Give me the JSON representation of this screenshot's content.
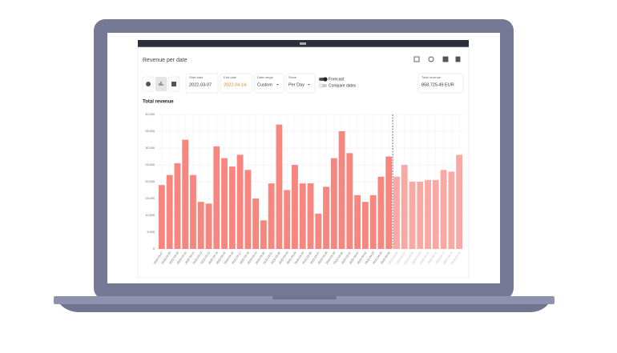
{
  "header": {
    "title": "Revenue per date"
  },
  "controls": {
    "start_date": {
      "label": "Start date",
      "value": "2022-03-07"
    },
    "end_date": {
      "label": "End date",
      "value": "2022-04-14"
    },
    "date_range": {
      "label": "Date range",
      "value": "Custom"
    },
    "show": {
      "label": "Show",
      "value": "Per Day"
    },
    "forecast": "Forecast",
    "compare": "Compare dates",
    "total": {
      "label": "Total revenue",
      "value": "858,725.49 EUR"
    }
  },
  "chart_data": {
    "type": "bar",
    "title": "Total revenue",
    "categories": [
      "2022-03-07",
      "2022-03-08",
      "2022-03-09",
      "2022-03-10",
      "2022-03-11",
      "2022-03-12",
      "2022-03-13",
      "2022-03-14",
      "2022-03-15",
      "2022-03-16",
      "2022-03-17",
      "2022-03-18",
      "2022-03-19",
      "2022-03-20",
      "2022-03-21",
      "2022-03-22",
      "2022-03-23",
      "2022-03-24",
      "2022-03-25",
      "2022-03-26",
      "2022-03-27",
      "2022-03-28",
      "2022-03-29",
      "2022-03-30",
      "2022-03-31",
      "2022-04-01",
      "2022-04-02",
      "2022-04-03",
      "2022-04-04",
      "2022-04-05",
      "2022-04-06",
      "2022-04-07",
      "2022-04-08",
      "2022-04-09",
      "2022-04-10",
      "2022-04-11",
      "2022-04-12",
      "2022-04-13",
      "2022-04-14"
    ],
    "values": [
      19000,
      22000,
      25500,
      32500,
      22000,
      14000,
      13500,
      30500,
      27000,
      24500,
      28000,
      23500,
      15000,
      8500,
      19500,
      37000,
      17500,
      25000,
      19500,
      19500,
      10500,
      18500,
      27000,
      35000,
      28500,
      16000,
      14000,
      16000,
      21500,
      27500,
      21500,
      25000,
      20000,
      20000,
      20500,
      20500,
      23500,
      23000,
      28000
    ],
    "colors": [
      "#f7867e",
      "#f7867e",
      "#f7867e",
      "#f7867e",
      "#f7867e",
      "#f7867e",
      "#f7867e",
      "#f7867e",
      "#f7867e",
      "#f7867e",
      "#f7867e",
      "#f7867e",
      "#f7867e",
      "#f7867e",
      "#f7867e",
      "#f7867e",
      "#f7867e",
      "#f7867e",
      "#f7867e",
      "#f7867e",
      "#f7867e",
      "#f7867e",
      "#f7867e",
      "#f7867e",
      "#f7867e",
      "#f7867e",
      "#f7867e",
      "#f7867e",
      "#f7867e",
      "#f7867e",
      "#f9a9a3",
      "#f9a9a3",
      "#f9a9a3",
      "#f9a9a3",
      "#f9a9a3",
      "#f9a9a3",
      "#f9a9a3",
      "#f9a9a3",
      "#f9a9a3"
    ],
    "ylim": [
      0,
      40000
    ],
    "yticks": [
      {
        "value": 0,
        "label": "0"
      },
      {
        "value": 5000,
        "label": "5,000"
      },
      {
        "value": 10000,
        "label": "10,000"
      },
      {
        "value": 15000,
        "label": "15,000"
      },
      {
        "value": 20000,
        "label": "20,000"
      },
      {
        "value": 25000,
        "label": "25,000"
      },
      {
        "value": 30000,
        "label": "30,000"
      },
      {
        "value": 35000,
        "label": "35,000"
      },
      {
        "value": 40000,
        "label": "40,000"
      }
    ],
    "grid": true
  }
}
